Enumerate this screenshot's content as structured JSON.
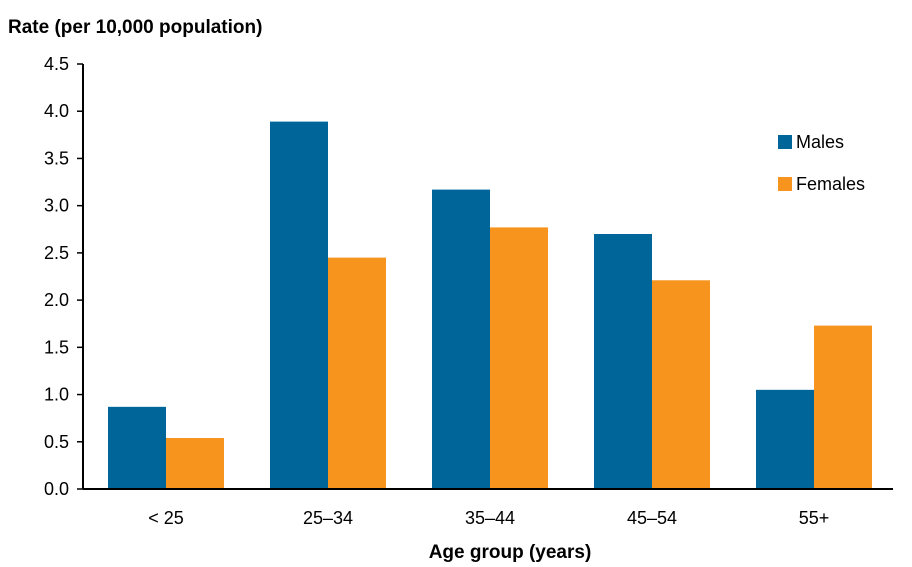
{
  "chart_data": {
    "type": "bar",
    "title": "",
    "ylabel": "Rate (per 10,000 population)",
    "xlabel": "Age group (years)",
    "categories": [
      "< 25",
      "25–34",
      "35–44",
      "45–54",
      "55+"
    ],
    "series": [
      {
        "name": "Males",
        "color": "#006699",
        "values": [
          0.87,
          3.89,
          3.17,
          2.7,
          1.05
        ]
      },
      {
        "name": "Females",
        "color": "#F7941E",
        "values": [
          0.54,
          2.45,
          2.77,
          2.21,
          1.73
        ]
      }
    ],
    "ylim": [
      0,
      4.5
    ],
    "yticks": [
      "0.0",
      "0.5",
      "1.0",
      "1.5",
      "2.0",
      "2.5",
      "3.0",
      "3.5",
      "4.0",
      "4.5"
    ],
    "grid": false,
    "legend_position": "top-right"
  }
}
